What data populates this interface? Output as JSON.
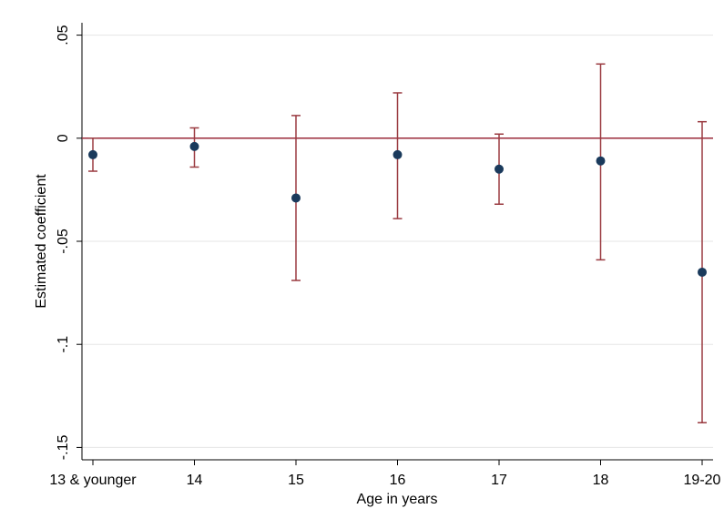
{
  "chart_data": {
    "type": "errorbar",
    "categories": [
      "13 & younger",
      "14",
      "15",
      "16",
      "17",
      "18",
      "19-20"
    ],
    "values": [
      -0.008,
      -0.004,
      -0.029,
      -0.008,
      -0.015,
      -0.011,
      -0.065
    ],
    "lower": [
      -0.016,
      -0.014,
      -0.069,
      -0.039,
      -0.032,
      -0.059,
      -0.138
    ],
    "upper": [
      0.0,
      0.005,
      0.011,
      0.022,
      0.002,
      0.036,
      0.008
    ],
    "color": "#1a3a5c",
    "errorbar_color": "#9a3a40",
    "xlabel": "Age in years",
    "ylabel": "Estimated coefficient",
    "ylim": [
      -0.156,
      0.056
    ],
    "yticks": [
      {
        "value": 0.05,
        "label": ".05"
      },
      0,
      {
        "value": -0.05,
        "label": "-.05"
      },
      {
        "value": -0.1,
        "label": "-.1"
      },
      {
        "value": -0.15,
        "label": "-.15"
      }
    ],
    "reference_line": 0,
    "reference_color": "#9a2a3a",
    "grid": true
  }
}
